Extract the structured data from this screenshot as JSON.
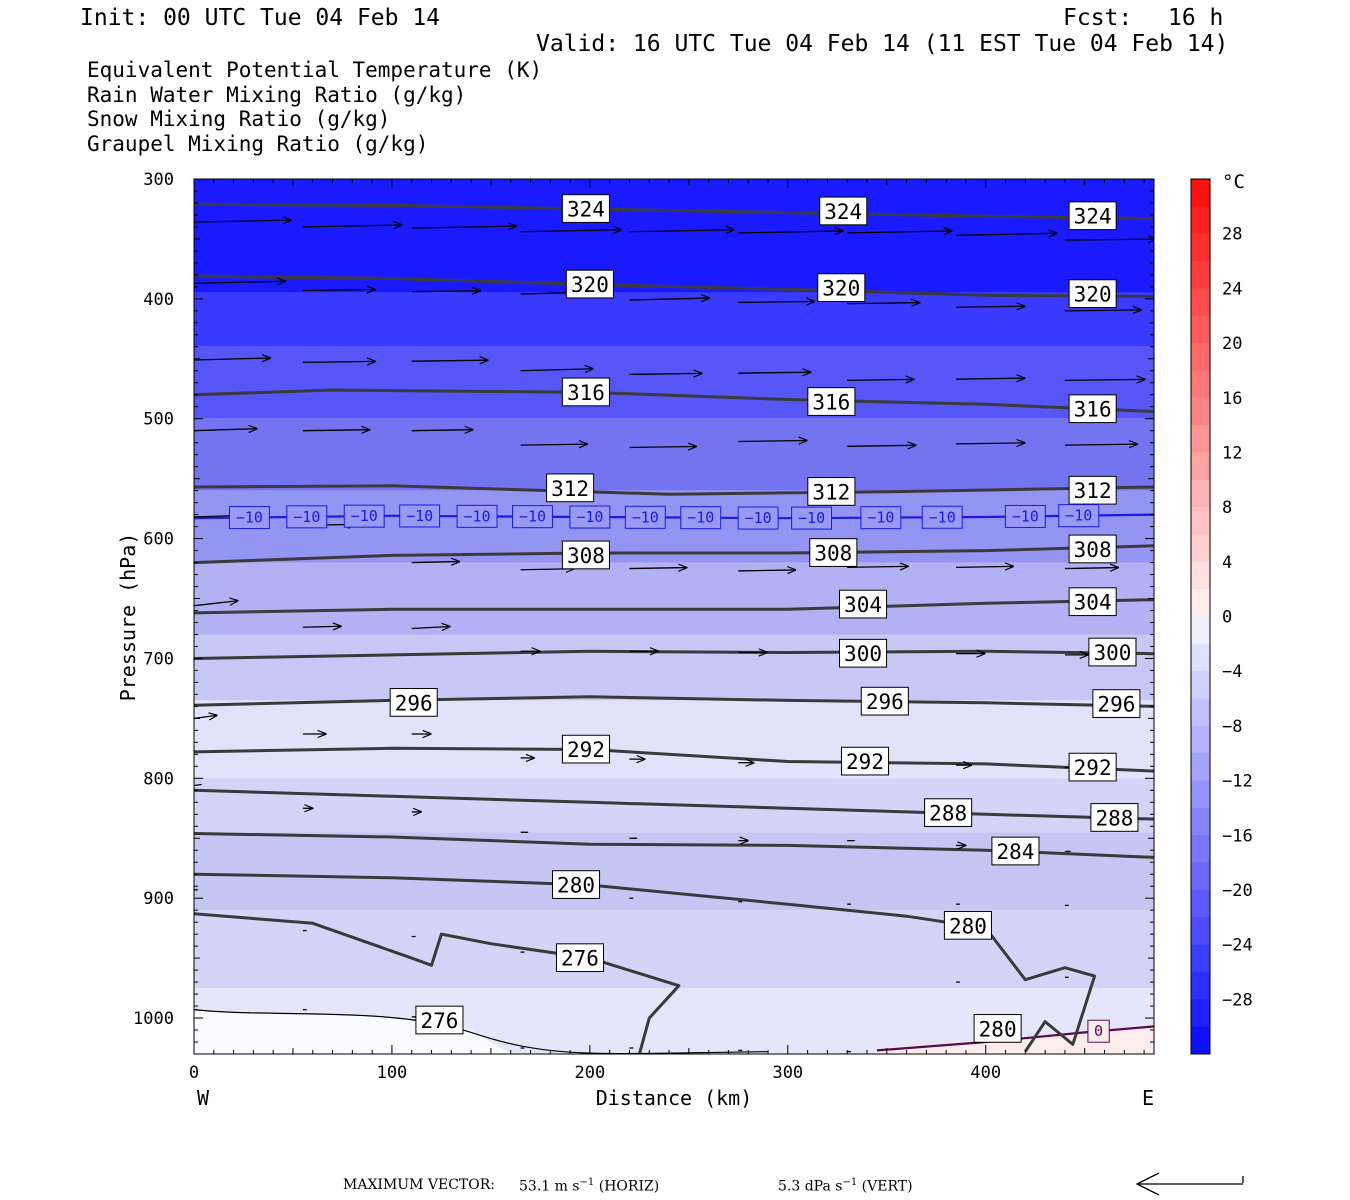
{
  "header": {
    "init": "Init: 00 UTC Tue 04 Feb 14",
    "fcst_label": "Fcst:",
    "fcst_value": "16 h",
    "valid": "Valid: 16 UTC Tue 04 Feb 14 (11 EST Tue 04 Feb 14)"
  },
  "fields": [
    {
      "label": "Equivalent Potential Temperature (K)",
      "color": "#404040"
    },
    {
      "label": "Rain Water Mixing Ratio (g/kg)",
      "color": "#0a7a0a"
    },
    {
      "label": "Snow Mixing Ratio (g/kg)",
      "color": "#f0904a"
    },
    {
      "label": "Graupel Mixing Ratio (g/kg)",
      "color": "#e46ee0"
    }
  ],
  "chart_data": {
    "type": "cross-section",
    "ylabel": "Pressure (hPa)",
    "xlabel": "Distance (km)",
    "xlim": [
      0,
      485
    ],
    "ylim": [
      300,
      1030
    ],
    "x_ticks": [
      "0",
      "100",
      "200",
      "300",
      "400"
    ],
    "y_ticks": [
      "300",
      "400",
      "500",
      "600",
      "700",
      "800",
      "900",
      "1000"
    ],
    "west_label": "W",
    "east_label": "E",
    "colorbar": {
      "unit": "°C",
      "labels": [
        "28",
        "24",
        "20",
        "16",
        "12",
        "8",
        "4",
        "0",
        "−4",
        "−8",
        "−12",
        "−16",
        "−20",
        "−24",
        "−28"
      ],
      "range": [
        -32,
        32
      ]
    },
    "theta_e_contours": [
      {
        "value": "324",
        "p": [
          [
            0,
            321
          ],
          [
            100,
            322
          ],
          [
            200,
            325
          ],
          [
            300,
            328
          ],
          [
            400,
            331
          ],
          [
            485,
            333
          ]
        ],
        "labels": [
          [
            198,
            325
          ],
          [
            328,
            327
          ],
          [
            454,
            331
          ]
        ]
      },
      {
        "value": "320",
        "p": [
          [
            0,
            381
          ],
          [
            100,
            383
          ],
          [
            200,
            388
          ],
          [
            300,
            392
          ],
          [
            400,
            397
          ],
          [
            485,
            398
          ]
        ],
        "labels": [
          [
            200,
            388
          ],
          [
            327,
            391
          ],
          [
            454,
            396
          ]
        ]
      },
      {
        "value": "316",
        "p": [
          [
            0,
            480
          ],
          [
            70,
            476
          ],
          [
            200,
            478
          ],
          [
            300,
            484
          ],
          [
            400,
            488
          ],
          [
            485,
            494
          ]
        ],
        "labels": [
          [
            198,
            478
          ],
          [
            322,
            486
          ],
          [
            454,
            492
          ]
        ]
      },
      {
        "value": "312",
        "p": [
          [
            0,
            557
          ],
          [
            100,
            556
          ],
          [
            240,
            563
          ],
          [
            350,
            561
          ],
          [
            485,
            557
          ]
        ],
        "labels": [
          [
            190,
            558
          ],
          [
            322,
            561
          ],
          [
            454,
            560
          ]
        ]
      },
      {
        "value": "308",
        "p": [
          [
            0,
            620
          ],
          [
            100,
            614
          ],
          [
            200,
            612
          ],
          [
            300,
            612
          ],
          [
            400,
            610
          ],
          [
            485,
            606
          ]
        ],
        "labels": [
          [
            198,
            614
          ],
          [
            323,
            612
          ],
          [
            454,
            609
          ]
        ]
      },
      {
        "value": "304",
        "p": [
          [
            0,
            662
          ],
          [
            100,
            659
          ],
          [
            200,
            659
          ],
          [
            300,
            659
          ],
          [
            400,
            654
          ],
          [
            485,
            651
          ]
        ],
        "labels": [
          [
            338,
            655
          ],
          [
            454,
            653
          ]
        ]
      },
      {
        "value": "300",
        "p": [
          [
            0,
            700
          ],
          [
            100,
            697
          ],
          [
            200,
            694
          ],
          [
            300,
            695
          ],
          [
            400,
            694
          ],
          [
            485,
            696
          ]
        ],
        "labels": [
          [
            338,
            696
          ],
          [
            464,
            695
          ]
        ]
      },
      {
        "value": "296",
        "p": [
          [
            0,
            739
          ],
          [
            100,
            735
          ],
          [
            200,
            732
          ],
          [
            300,
            735
          ],
          [
            400,
            737
          ],
          [
            485,
            740
          ]
        ],
        "labels": [
          [
            111,
            737
          ],
          [
            349,
            736
          ],
          [
            466,
            738
          ]
        ]
      },
      {
        "value": "292",
        "p": [
          [
            0,
            778
          ],
          [
            100,
            775
          ],
          [
            200,
            776
          ],
          [
            300,
            786
          ],
          [
            400,
            788
          ],
          [
            485,
            794
          ]
        ],
        "labels": [
          [
            198,
            776
          ],
          [
            339,
            786
          ],
          [
            454,
            791
          ]
        ]
      },
      {
        "value": "288",
        "p": [
          [
            0,
            810
          ],
          [
            100,
            815
          ],
          [
            200,
            820
          ],
          [
            300,
            825
          ],
          [
            400,
            830
          ],
          [
            485,
            834
          ]
        ],
        "labels": [
          [
            381,
            829
          ],
          [
            465,
            833
          ]
        ]
      },
      {
        "value": "284",
        "p": [
          [
            0,
            846
          ],
          [
            100,
            849
          ],
          [
            200,
            855
          ],
          [
            300,
            856
          ],
          [
            400,
            860
          ],
          [
            485,
            866
          ]
        ],
        "labels": [
          [
            415,
            861
          ]
        ]
      },
      {
        "value": "280",
        "p": [
          [
            0,
            880
          ],
          [
            100,
            883
          ],
          [
            200,
            889
          ],
          [
            300,
            905
          ],
          [
            360,
            915
          ],
          [
            400,
            925
          ],
          [
            420,
            968
          ],
          [
            440,
            958
          ],
          [
            455,
            965
          ],
          [
            444,
            1022
          ],
          [
            430,
            1003
          ],
          [
            420,
            1028
          ]
        ],
        "labels": [
          [
            193,
            889
          ],
          [
            391,
            923
          ],
          [
            406,
            1009
          ]
        ]
      },
      {
        "value": "276",
        "p": [
          [
            0,
            913
          ],
          [
            60,
            921
          ],
          [
            110,
            950
          ],
          [
            120,
            956
          ],
          [
            125,
            930
          ],
          [
            150,
            938
          ],
          [
            200,
            950
          ],
          [
            245,
            973
          ],
          [
            230,
            1000
          ],
          [
            225,
            1030
          ]
        ],
        "labels": [
          [
            195,
            950
          ],
          [
            124,
            1002
          ]
        ]
      }
    ],
    "temperature_isotherms": [
      {
        "value": "−10",
        "p": [
          [
            0,
            583
          ],
          [
            100,
            581
          ],
          [
            200,
            582
          ],
          [
            300,
            583
          ],
          [
            400,
            582
          ],
          [
            485,
            580
          ]
        ],
        "labels": [
          28,
          57,
          86,
          114,
          143,
          171,
          200,
          228,
          256,
          285,
          312,
          347,
          378,
          420,
          447
        ]
      },
      {
        "value": "0",
        "p": [
          [
            345,
            1027
          ],
          [
            400,
            1020
          ],
          [
            450,
            1012
          ],
          [
            485,
            1007
          ]
        ],
        "labels": [
          457
        ]
      }
    ],
    "wind_vectors": [
      [
        0,
        336,
        51,
        -2
      ],
      [
        55,
        340,
        52,
        -2
      ],
      [
        110,
        341,
        55,
        -2
      ],
      [
        165,
        344,
        53,
        -2
      ],
      [
        220,
        344,
        55,
        -2
      ],
      [
        275,
        345,
        55,
        -2
      ],
      [
        330,
        345,
        55,
        -2
      ],
      [
        385,
        347,
        53,
        -2
      ],
      [
        440,
        351,
        48,
        -1
      ],
      [
        0,
        387,
        48,
        -2
      ],
      [
        55,
        393,
        38,
        -1
      ],
      [
        110,
        394,
        36,
        -1
      ],
      [
        165,
        396,
        39,
        -2
      ],
      [
        220,
        401,
        42,
        -2
      ],
      [
        275,
        403,
        40,
        -1
      ],
      [
        330,
        404,
        38,
        -1
      ],
      [
        385,
        407,
        36,
        -1
      ],
      [
        440,
        410,
        40,
        -1
      ],
      [
        0,
        451,
        40,
        -2
      ],
      [
        55,
        453,
        38,
        -1
      ],
      [
        110,
        452,
        40,
        -1
      ],
      [
        165,
        460,
        38,
        -2
      ],
      [
        220,
        463,
        38,
        -1
      ],
      [
        275,
        462,
        38,
        -1
      ],
      [
        330,
        468,
        35,
        -1
      ],
      [
        385,
        467,
        36,
        -1
      ],
      [
        440,
        468,
        42,
        -1
      ],
      [
        0,
        510,
        33,
        -2
      ],
      [
        55,
        510,
        35,
        -1
      ],
      [
        110,
        510,
        32,
        -1
      ],
      [
        165,
        522,
        35,
        -1
      ],
      [
        220,
        524,
        35,
        -1
      ],
      [
        275,
        519,
        36,
        -1
      ],
      [
        330,
        523,
        36,
        -1
      ],
      [
        385,
        521,
        36,
        -1
      ],
      [
        440,
        522,
        38,
        -1
      ],
      [
        0,
        582,
        30,
        -2
      ],
      [
        55,
        589,
        28,
        -1
      ],
      [
        110,
        620,
        25,
        -1
      ],
      [
        165,
        626,
        28,
        -1
      ],
      [
        220,
        625,
        30,
        -1
      ],
      [
        275,
        627,
        30,
        -1
      ],
      [
        330,
        624,
        32,
        -1
      ],
      [
        385,
        624,
        30,
        -1
      ],
      [
        440,
        625,
        28,
        -1
      ],
      [
        0,
        656,
        23,
        -5
      ],
      [
        55,
        674,
        20,
        -1
      ],
      [
        110,
        675,
        20,
        -2
      ],
      [
        165,
        694,
        10,
        0
      ],
      [
        220,
        694,
        15,
        0
      ],
      [
        275,
        695,
        15,
        0
      ],
      [
        330,
        695,
        12,
        0
      ],
      [
        385,
        696,
        15,
        0
      ],
      [
        440,
        697,
        12,
        0
      ],
      [
        0,
        750,
        12,
        -3
      ],
      [
        55,
        763,
        12,
        0
      ],
      [
        110,
        763,
        10,
        0
      ],
      [
        165,
        783,
        7,
        0
      ],
      [
        220,
        784,
        8,
        0
      ],
      [
        275,
        787,
        8,
        0
      ],
      [
        330,
        790,
        7,
        0
      ],
      [
        385,
        789,
        8,
        0
      ],
      [
        440,
        791,
        6,
        0
      ],
      [
        0,
        806,
        4,
        -1
      ],
      [
        55,
        825,
        5,
        0
      ],
      [
        110,
        828,
        5,
        0
      ],
      [
        165,
        845,
        4,
        0
      ],
      [
        220,
        850,
        4,
        0
      ],
      [
        275,
        852,
        5,
        0
      ],
      [
        330,
        852,
        4,
        0
      ],
      [
        385,
        856,
        5,
        0
      ],
      [
        440,
        861,
        3,
        0
      ],
      [
        0,
        893,
        2,
        0
      ],
      [
        55,
        927,
        2,
        0
      ],
      [
        110,
        932,
        2,
        0
      ],
      [
        165,
        945,
        2,
        0
      ],
      [
        220,
        900,
        2,
        0
      ],
      [
        275,
        903,
        2,
        0
      ],
      [
        330,
        905,
        2,
        0
      ],
      [
        385,
        905,
        2,
        0
      ],
      [
        440,
        906,
        2,
        0
      ],
      [
        0,
        993,
        2,
        0
      ],
      [
        55,
        993,
        2,
        0
      ],
      [
        110,
        999,
        2,
        0
      ],
      [
        165,
        1025,
        2,
        0
      ],
      [
        220,
        1025,
        2,
        0
      ],
      [
        275,
        1027,
        2,
        0
      ],
      [
        330,
        1028,
        2,
        0
      ],
      [
        385,
        970,
        2,
        0
      ],
      [
        440,
        966,
        2,
        0
      ]
    ]
  },
  "footer": {
    "max_vector_label": "MAXIMUM VECTOR:",
    "horiz_value": "53.1 m s",
    "horiz_exp": "−1",
    "horiz_unit": "(HORIZ)",
    "vert_value": "5.3 dPa s",
    "vert_exp": "−1",
    "vert_unit": "(VERT)"
  }
}
